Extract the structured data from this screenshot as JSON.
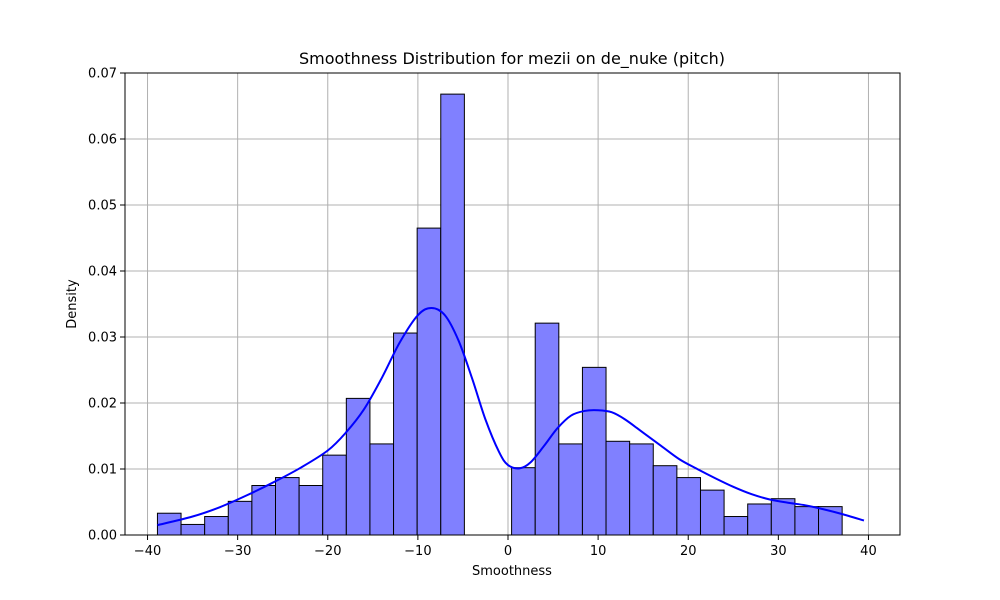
{
  "chart_data": {
    "type": "bar",
    "title": "Smoothness Distribution for mezii on de_nuke (pitch)",
    "xlabel": "Smoothness",
    "ylabel": "Density",
    "xlim": [
      -42.5,
      43.5
    ],
    "ylim": [
      0,
      0.07
    ],
    "x_ticks": [
      -40,
      -30,
      -20,
      -10,
      0,
      10,
      20,
      30,
      40
    ],
    "x_tick_labels": [
      "−40",
      "−30",
      "−20",
      "−10",
      "0",
      "10",
      "20",
      "30",
      "40"
    ],
    "y_ticks": [
      0,
      0.01,
      0.02,
      0.03,
      0.04,
      0.05,
      0.06,
      0.07
    ],
    "y_tick_labels": [
      "0.00",
      "0.01",
      "0.02",
      "0.03",
      "0.04",
      "0.05",
      "0.06",
      "0.07"
    ],
    "grid": true,
    "bar_color": "#8080ff",
    "bar_edge_color": "#000000",
    "kde_color": "#0000ff",
    "bins": {
      "start": -38.9,
      "width": 2.62,
      "values": [
        0.0033,
        0.0016,
        0.0028,
        0.0051,
        0.0075,
        0.0087,
        0.0075,
        0.0121,
        0.0207,
        0.0138,
        0.0306,
        0.0465,
        0.0668,
        0,
        0,
        0.0102,
        0.0321,
        0.0138,
        0.0254,
        0.0142,
        0.0138,
        0.0105,
        0.0087,
        0.0068,
        0.0028,
        0.0047,
        0.0055,
        0.0043,
        0.0043
      ]
    },
    "kde": {
      "x": [
        -38.9,
        -35,
        -32,
        -29,
        -26,
        -23,
        -20,
        -18,
        -16,
        -14,
        -12,
        -10,
        -8.5,
        -7,
        -5.5,
        -4,
        -2.5,
        -1,
        0,
        1.3,
        2.5,
        4,
        5.5,
        7,
        8.5,
        10,
        11.5,
        13,
        15,
        17,
        19,
        21,
        23,
        25,
        27,
        29,
        31,
        33,
        35,
        37,
        39.5
      ],
      "y": [
        0.0015,
        0.0028,
        0.0042,
        0.006,
        0.008,
        0.0102,
        0.0128,
        0.0155,
        0.019,
        0.0238,
        0.0292,
        0.0333,
        0.0344,
        0.0333,
        0.0295,
        0.0238,
        0.0175,
        0.0126,
        0.0106,
        0.0101,
        0.011,
        0.0135,
        0.0162,
        0.0181,
        0.0188,
        0.0189,
        0.0186,
        0.0175,
        0.0155,
        0.0135,
        0.0115,
        0.01,
        0.0086,
        0.0073,
        0.0062,
        0.0054,
        0.0049,
        0.0045,
        0.0039,
        0.0032,
        0.0022
      ]
    }
  }
}
